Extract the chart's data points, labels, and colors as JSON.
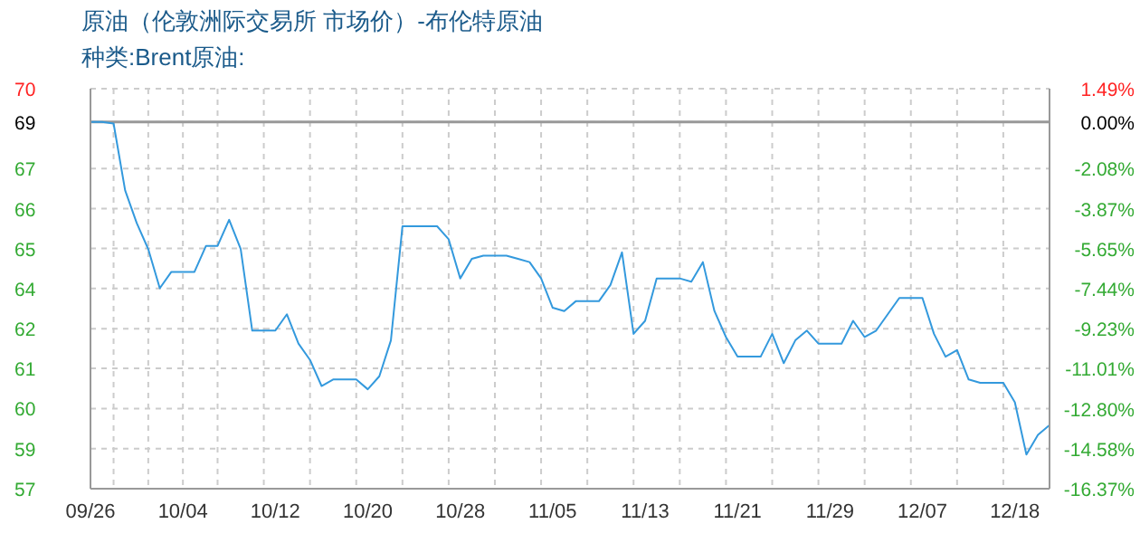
{
  "chart_data": {
    "type": "line",
    "title": "原油（伦敦洲际交易所 市场价）-布伦特原油",
    "subtitle": "种类:Brent原油:",
    "categories": [
      "09/26",
      null,
      null,
      null,
      null,
      null,
      null,
      null,
      "10/04",
      null,
      null,
      null,
      null,
      null,
      null,
      null,
      "10/12",
      null,
      null,
      null,
      null,
      null,
      null,
      null,
      "10/20",
      null,
      null,
      null,
      null,
      null,
      null,
      null,
      "10/28",
      null,
      null,
      null,
      null,
      null,
      null,
      null,
      "11/05",
      null,
      null,
      null,
      null,
      null,
      null,
      null,
      "11/13",
      null,
      null,
      null,
      null,
      null,
      null,
      null,
      "11/21",
      null,
      null,
      null,
      null,
      null,
      null,
      null,
      "11/29",
      null,
      null,
      null,
      null,
      null,
      null,
      null,
      "12/07",
      null,
      null,
      null,
      null,
      null,
      null,
      null,
      "12/18",
      null,
      null,
      null
    ],
    "series": [
      {
        "color": "#3399dd",
        "values": [
          68.7,
          68.7,
          68.65,
          66.6,
          65.6,
          64.8,
          63.6,
          64.1,
          64.1,
          64.1,
          64.9,
          64.9,
          65.7,
          64.8,
          62.3,
          62.3,
          62.3,
          62.8,
          61.9,
          61.4,
          60.6,
          60.8,
          60.8,
          60.8,
          60.5,
          60.9,
          62.0,
          65.5,
          65.5,
          65.5,
          65.5,
          65.1,
          63.9,
          64.5,
          64.6,
          64.6,
          64.6,
          64.5,
          64.4,
          63.9,
          63.0,
          62.9,
          63.2,
          63.2,
          63.2,
          63.7,
          64.7,
          62.2,
          62.6,
          63.9,
          63.9,
          63.9,
          63.8,
          64.4,
          62.9,
          62.1,
          61.5,
          61.5,
          61.5,
          62.2,
          61.3,
          62.0,
          62.3,
          61.9,
          61.9,
          61.9,
          62.6,
          62.1,
          62.3,
          62.8,
          63.3,
          63.3,
          63.3,
          62.2,
          61.5,
          61.7,
          60.8,
          60.7,
          60.7,
          60.7,
          60.1,
          58.5,
          59.1,
          59.4
        ]
      }
    ],
    "ylim": [
      57.45,
      69.72
    ],
    "yticks": [
      {
        "value": 69.72,
        "label": "70"
      },
      {
        "value": 68.7,
        "label": "69"
      },
      {
        "value": 67.27,
        "label": "67"
      },
      {
        "value": 66.04,
        "label": "66"
      },
      {
        "value": 64.82,
        "label": "65"
      },
      {
        "value": 63.59,
        "label": "64"
      },
      {
        "value": 62.36,
        "label": "62"
      },
      {
        "value": 61.14,
        "label": "61"
      },
      {
        "value": 59.91,
        "label": "60"
      },
      {
        "value": 58.68,
        "label": "59"
      },
      {
        "value": 57.45,
        "label": "57"
      }
    ],
    "y2lim": [
      -16.37,
      1.49
    ],
    "y2ticks": [
      {
        "value": 1.49,
        "label": "1.49%"
      },
      {
        "value": 0,
        "label": "0.00%"
      },
      {
        "value": -2.08,
        "label": "-2.08%"
      },
      {
        "value": -3.87,
        "label": "-3.87%"
      },
      {
        "value": -5.65,
        "label": "-5.65%"
      },
      {
        "value": -7.44,
        "label": "-7.44%"
      },
      {
        "value": -9.23,
        "label": "-9.23%"
      },
      {
        "value": -11.01,
        "label": "-11.01%"
      },
      {
        "value": -12.8,
        "label": "-12.80%"
      },
      {
        "value": -14.58,
        "label": "-14.58%"
      },
      {
        "value": -16.37,
        "label": "-16.37%"
      }
    ],
    "ref_lines": [
      {
        "axis": "y2",
        "value": 0,
        "color": "#999999"
      }
    ],
    "grid": true,
    "legend": false
  }
}
